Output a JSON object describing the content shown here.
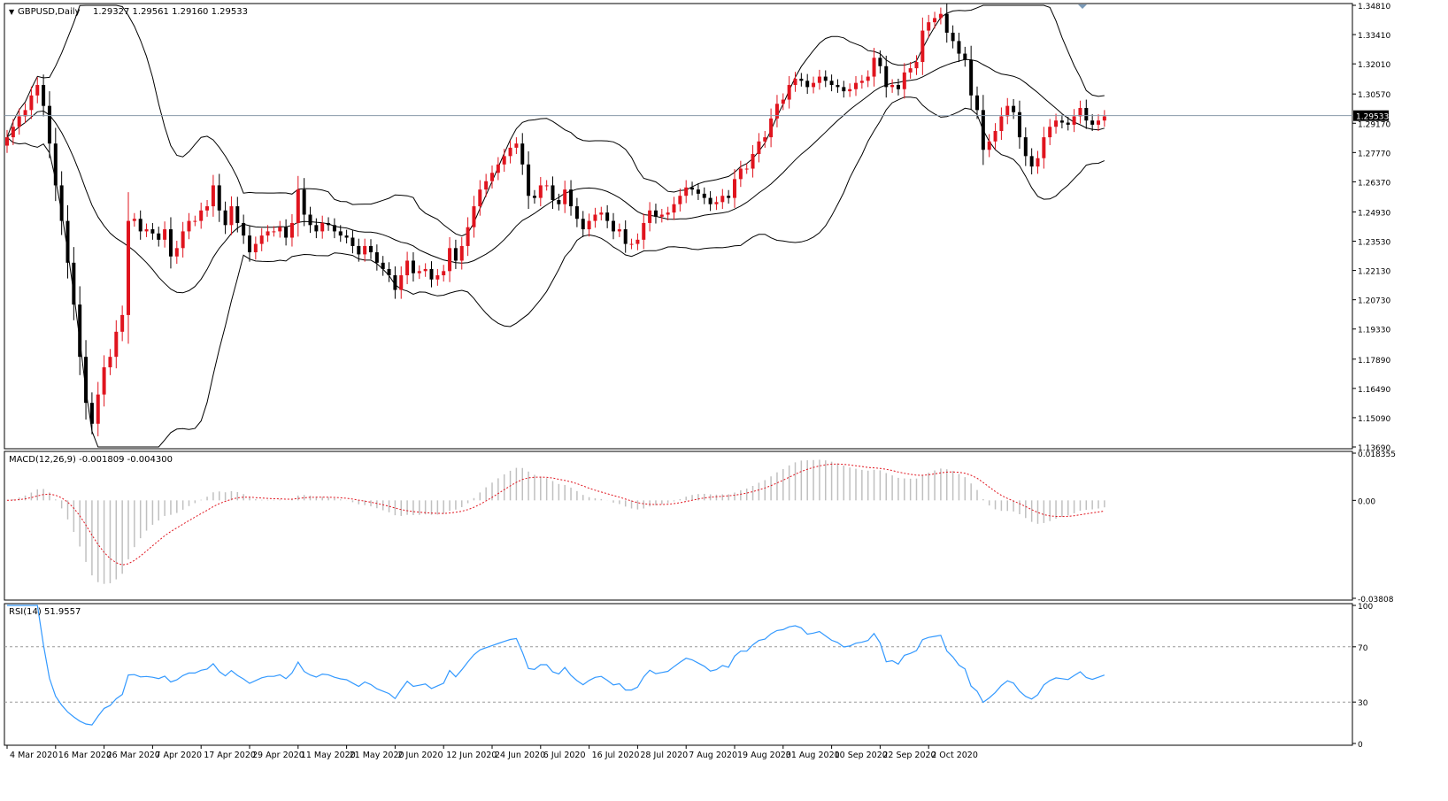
{
  "header": {
    "symbol": "GBPUSD,Daily",
    "ohlc": "1.29327 1.29561 1.29160 1.29533",
    "collapse_glyph": "▼"
  },
  "colors": {
    "bull": "#e0141e",
    "bear": "#000000",
    "bands": "#000000",
    "macd_hist": "#c0c0c0",
    "macd_signal": "#e0141e",
    "rsi_line": "#3399ff",
    "price_line": "#8899aa",
    "grid": "#999999"
  },
  "chart_data": [
    {
      "type": "candlestick",
      "title": "GBPUSD,Daily",
      "ylim": [
        1.1369,
        1.3481
      ],
      "y_ticks": [
        "1.34810",
        "1.33410",
        "1.32010",
        "1.30570",
        "1.29170",
        "1.27770",
        "1.26370",
        "1.24930",
        "1.23530",
        "1.22130",
        "1.20730",
        "1.19330",
        "1.17890",
        "1.16490",
        "1.15090",
        "1.13690"
      ],
      "current_price": "1.29533",
      "x_labels": [
        "4 Mar 2020",
        "16 Mar 2020",
        "26 Mar 2020",
        "7 Apr 2020",
        "17 Apr 2020",
        "29 Apr 2020",
        "11 May 2020",
        "21 May 2020",
        "2 Jun 2020",
        "12 Jun 2020",
        "24 Jun 2020",
        "6 Jul 2020",
        "16 Jul 2020",
        "28 Jul 2020",
        "7 Aug 2020",
        "19 Aug 2020",
        "31 Aug 2020",
        "10 Sep 2020",
        "22 Sep 2020",
        "2 Oct 2020"
      ],
      "close": [
        1.285,
        1.29,
        1.295,
        1.298,
        1.305,
        1.31,
        1.3,
        1.282,
        1.262,
        1.245,
        1.225,
        1.205,
        1.18,
        1.158,
        1.148,
        1.162,
        1.175,
        1.18,
        1.192,
        1.2,
        1.245,
        1.246,
        1.24,
        1.241,
        1.239,
        1.236,
        1.241,
        1.228,
        1.232,
        1.24,
        1.245,
        1.245,
        1.25,
        1.252,
        1.262,
        1.25,
        1.243,
        1.252,
        1.244,
        1.238,
        1.23,
        1.234,
        1.238,
        1.24,
        1.24,
        1.242,
        1.237,
        1.244,
        1.26,
        1.248,
        1.243,
        1.24,
        1.244,
        1.243,
        1.24,
        1.238,
        1.237,
        1.233,
        1.229,
        1.233,
        1.23,
        1.225,
        1.222,
        1.219,
        1.212,
        1.219,
        1.226,
        1.22,
        1.221,
        1.222,
        1.217,
        1.219,
        1.221,
        1.232,
        1.226,
        1.233,
        1.242,
        1.252,
        1.26,
        1.264,
        1.268,
        1.272,
        1.276,
        1.28,
        1.282,
        1.272,
        1.257,
        1.256,
        1.262,
        1.262,
        1.255,
        1.253,
        1.26,
        1.252,
        1.246,
        1.241,
        1.245,
        1.248,
        1.249,
        1.245,
        1.24,
        1.241,
        1.234,
        1.234,
        1.236,
        1.244,
        1.25,
        1.247,
        1.248,
        1.249,
        1.253,
        1.257,
        1.261,
        1.26,
        1.258,
        1.256,
        1.253,
        1.254,
        1.257,
        1.256,
        1.265,
        1.27,
        1.27,
        1.277,
        1.283,
        1.285,
        1.294,
        1.301,
        1.303,
        1.31,
        1.313,
        1.312,
        1.309,
        1.311,
        1.314,
        1.312,
        1.31,
        1.309,
        1.307,
        1.308,
        1.311,
        1.312,
        1.314,
        1.323,
        1.319,
        1.309,
        1.31,
        1.308,
        1.316,
        1.318,
        1.321,
        1.336,
        1.34,
        1.342,
        1.344,
        1.335,
        1.331,
        1.325,
        1.322,
        1.305,
        1.298,
        1.279,
        1.283,
        1.288,
        1.295,
        1.3,
        1.297,
        1.285,
        1.276,
        1.271,
        1.275,
        1.285,
        1.29,
        1.293,
        1.292,
        1.291,
        1.295,
        1.299,
        1.293,
        1.291,
        1.293,
        1.295
      ],
      "bollinger": {
        "period": 20,
        "deviations": 2
      },
      "grid": false
    },
    {
      "type": "histogram+line",
      "title": "MACD(12,26,9) -0.001809 -0.004300",
      "ylim": [
        -0.03808,
        0.018355
      ],
      "y_ticks": [
        "0.018355",
        "0.00",
        "-0.03808"
      ],
      "params": [
        12,
        26,
        9
      ],
      "last_macd": -0.001809,
      "last_signal": -0.0043
    },
    {
      "type": "line",
      "title": "RSI(14) 51.9557",
      "ylim": [
        0,
        100
      ],
      "y_ticks": [
        "100",
        "70",
        "30",
        "0"
      ],
      "levels": [
        70,
        30
      ],
      "period": 14,
      "last_value": 51.9557
    }
  ]
}
